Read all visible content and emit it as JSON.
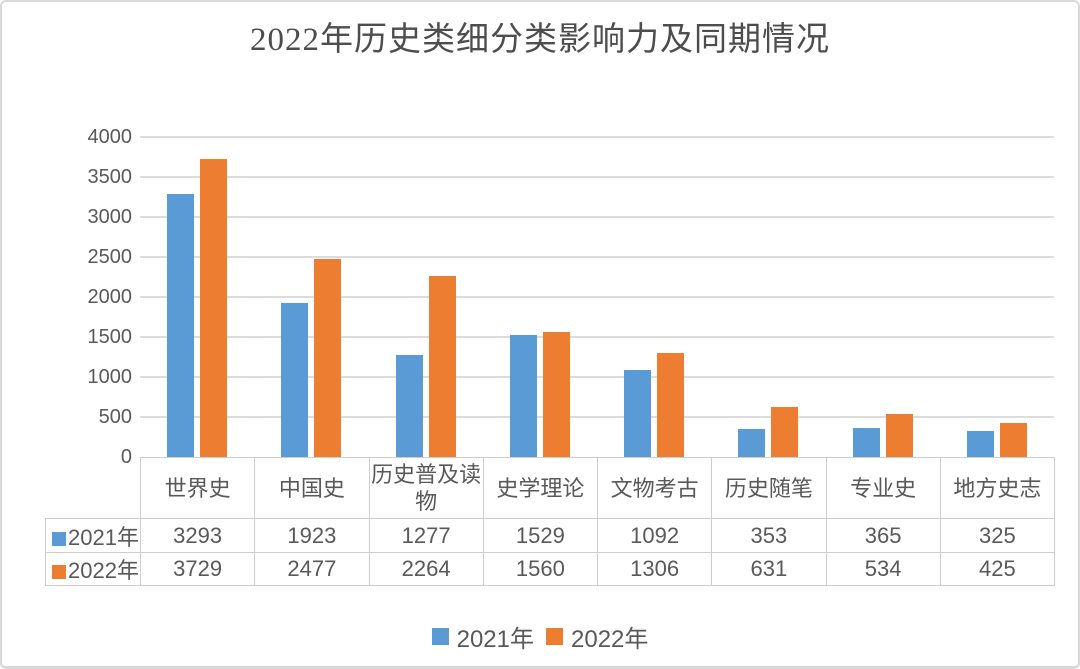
{
  "title": "2022年历史类细分类影响力及同期情况",
  "colors": {
    "series_2021": "#5B9BD5",
    "series_2022": "#ED7D31",
    "gridline": "#DCDCDC",
    "text": "#595959",
    "title_text": "#4D4D4D",
    "frame_border": "#D9D9D9",
    "table_border": "#CFCCCC"
  },
  "chart_data": {
    "type": "bar",
    "title": "2022年历史类细分类影响力及同期情况",
    "categories": [
      "世界史",
      "中国史",
      "历史普及读物",
      "史学理论",
      "文物考古",
      "历史随笔",
      "专业史",
      "地方史志"
    ],
    "series": [
      {
        "name": "2021年",
        "color": "#5B9BD5",
        "values": [
          3293,
          1923,
          1277,
          1529,
          1092,
          353,
          365,
          325
        ]
      },
      {
        "name": "2022年",
        "color": "#ED7D31",
        "values": [
          3729,
          2477,
          2264,
          1560,
          1306,
          631,
          534,
          425
        ]
      }
    ],
    "xlabel": "",
    "ylabel": "",
    "ylim": [
      0,
      4000
    ],
    "ytick_step": 500,
    "yticks": [
      0,
      500,
      1000,
      1500,
      2000,
      2500,
      3000,
      3500,
      4000
    ],
    "grid": true,
    "legend_position": "bottom",
    "data_table_shown": true
  }
}
